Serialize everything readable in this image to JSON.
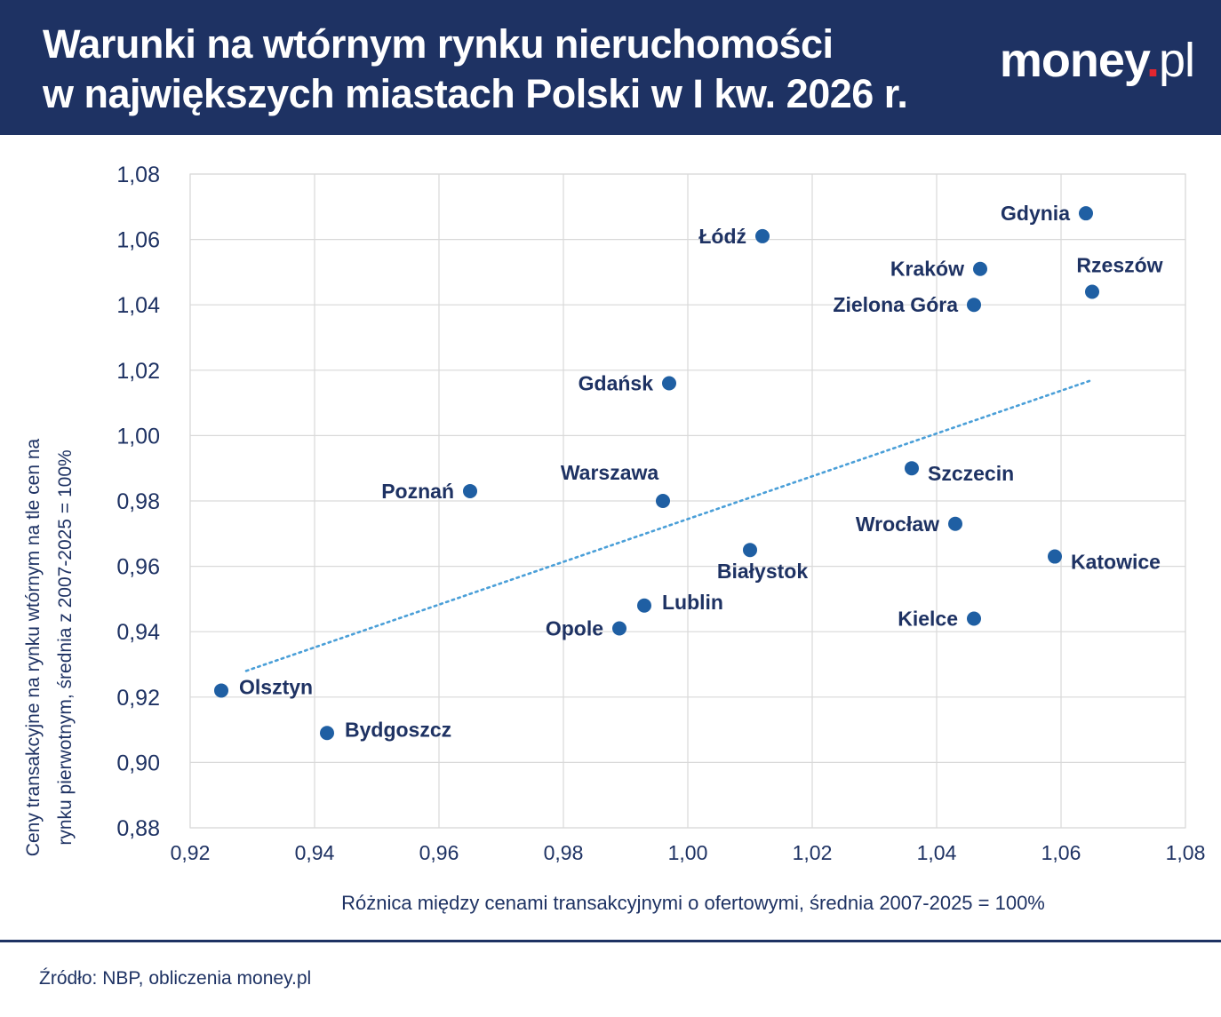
{
  "header": {
    "title_line1": "Warunki na wtórnym rynku nieruchomości",
    "title_line2": "w największych miastach Polski w I kw. 2026 r.",
    "logo_main": "money",
    "logo_dot": ".",
    "logo_tld": "pl"
  },
  "footer": {
    "source": "Źródło: NBP, obliczenia money.pl"
  },
  "colors": {
    "header_bg": "#1e3263",
    "point": "#1f5fa3",
    "trend": "#4a9fd8",
    "grid": "#d9d9d9",
    "text": "#1e3263"
  },
  "chart_data": {
    "type": "scatter",
    "xlabel": "Różnica między cenami transakcyjnymi o ofertowymi, średnia 2007-2025 = 100%",
    "ylabel_line1": "Ceny transakcyjne na rynku wtórnym na tle cen na",
    "ylabel_line2": "rynku pierwotnym, średnia z 2007-2025 = 100%",
    "xlim": [
      0.92,
      1.08
    ],
    "ylim": [
      0.88,
      1.08
    ],
    "x_ticks": [
      "0,92",
      "0,94",
      "0,96",
      "0,98",
      "1,00",
      "1,02",
      "1,04",
      "1,06",
      "1,08"
    ],
    "y_ticks": [
      "0,88",
      "0,90",
      "0,92",
      "0,94",
      "0,96",
      "0,98",
      "1,00",
      "1,02",
      "1,04",
      "1,06",
      "1,08"
    ],
    "grid": true,
    "points": [
      {
        "label": "Gdynia",
        "x": 1.064,
        "y": 1.068,
        "label_pos": "left"
      },
      {
        "label": "Łódź",
        "x": 1.012,
        "y": 1.061,
        "label_pos": "left"
      },
      {
        "label": "Kraków",
        "x": 1.047,
        "y": 1.051,
        "label_pos": "left"
      },
      {
        "label": "Rzeszów",
        "x": 1.065,
        "y": 1.044,
        "label_pos": "above"
      },
      {
        "label": "Zielona Góra",
        "x": 1.046,
        "y": 1.04,
        "label_pos": "left"
      },
      {
        "label": "Gdańsk",
        "x": 0.997,
        "y": 1.016,
        "label_pos": "left"
      },
      {
        "label": "Szczecin",
        "x": 1.036,
        "y": 0.99,
        "label_pos": "right-below"
      },
      {
        "label": "Poznań",
        "x": 0.965,
        "y": 0.983,
        "label_pos": "left"
      },
      {
        "label": "Warszawa",
        "x": 0.996,
        "y": 0.98,
        "label_pos": "above-left"
      },
      {
        "label": "Wrocław",
        "x": 1.043,
        "y": 0.973,
        "label_pos": "left"
      },
      {
        "label": "Białystok",
        "x": 1.01,
        "y": 0.965,
        "label_pos": "below"
      },
      {
        "label": "Katowice",
        "x": 1.059,
        "y": 0.963,
        "label_pos": "right-below"
      },
      {
        "label": "Lublin",
        "x": 0.993,
        "y": 0.948,
        "label_pos": "right"
      },
      {
        "label": "Kielce",
        "x": 1.046,
        "y": 0.944,
        "label_pos": "left"
      },
      {
        "label": "Opole",
        "x": 0.989,
        "y": 0.941,
        "label_pos": "left"
      },
      {
        "label": "Olsztyn",
        "x": 0.925,
        "y": 0.922,
        "label_pos": "right"
      },
      {
        "label": "Bydgoszcz",
        "x": 0.942,
        "y": 0.909,
        "label_pos": "right"
      }
    ],
    "trendline": {
      "x": [
        0.929,
        1.065
      ],
      "y": [
        0.928,
        1.017
      ],
      "style": "dotted"
    }
  }
}
